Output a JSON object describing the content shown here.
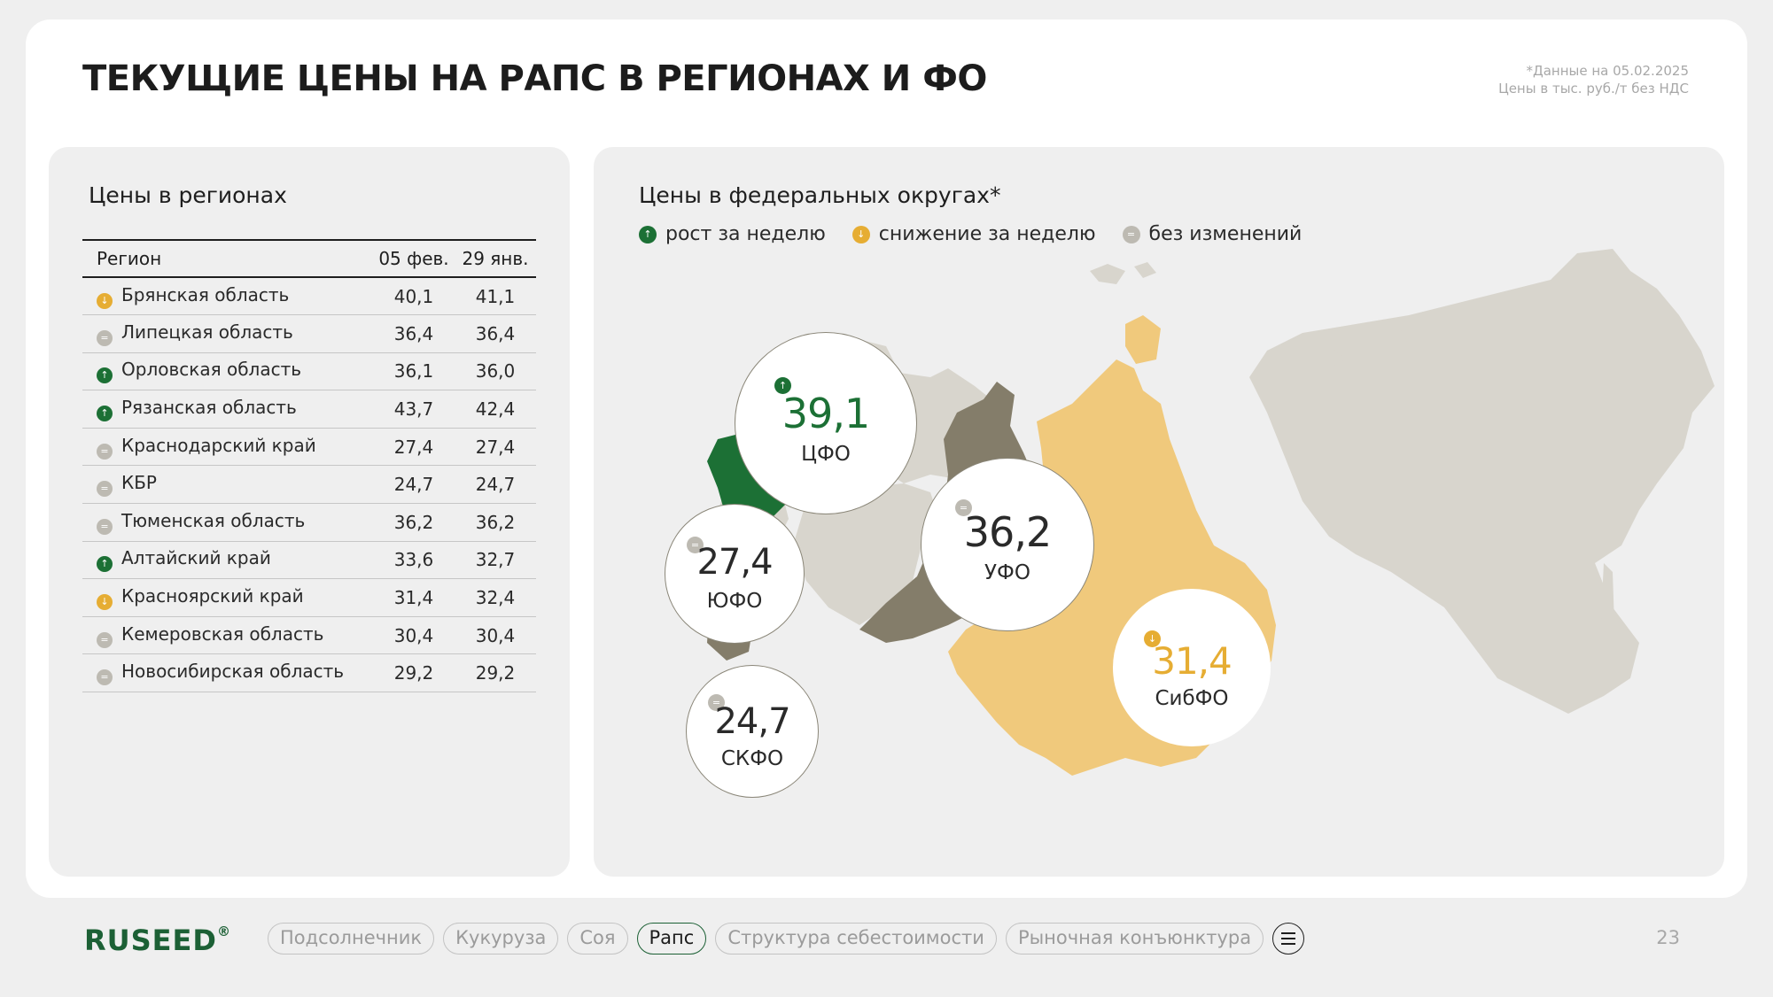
{
  "header": {
    "title": "ТЕКУЩИЕ ЦЕНЫ НА РАПС В РЕГИОНАХ И ФО",
    "note_date": "*Данные на 05.02.2025",
    "note_units": "Цены в тыс. руб./т без НДС"
  },
  "regions": {
    "title": "Цены в регионах",
    "columns": [
      "Регион",
      "05 фев.",
      "29 янв."
    ],
    "rows": [
      {
        "trend": "down",
        "name": "Брянская область",
        "cur": "40,1",
        "prev": "41,1"
      },
      {
        "trend": "flat",
        "name": "Липецкая область",
        "cur": "36,4",
        "prev": "36,4"
      },
      {
        "trend": "up",
        "name": "Орловская область",
        "cur": "36,1",
        "prev": "36,0"
      },
      {
        "trend": "up",
        "name": "Рязанская область",
        "cur": "43,7",
        "prev": "42,4"
      },
      {
        "trend": "flat",
        "name": "Краснодарский край",
        "cur": "27,4",
        "prev": "27,4"
      },
      {
        "trend": "flat",
        "name": "КБР",
        "cur": "24,7",
        "prev": "24,7"
      },
      {
        "trend": "flat",
        "name": "Тюменская область",
        "cur": "36,2",
        "prev": "36,2"
      },
      {
        "trend": "up",
        "name": "Алтайский край",
        "cur": "33,6",
        "prev": "32,7"
      },
      {
        "trend": "down",
        "name": "Красноярский край",
        "cur": "31,4",
        "prev": "32,4"
      },
      {
        "trend": "flat",
        "name": "Кемеровская область",
        "cur": "30,4",
        "prev": "30,4"
      },
      {
        "trend": "flat",
        "name": "Новосибирская область",
        "cur": "29,2",
        "prev": "29,2"
      }
    ]
  },
  "districts": {
    "title": "Цены в федеральных округах*",
    "legend": {
      "up": "рост за неделю",
      "down": "снижение за неделю",
      "flat": "без изменений"
    },
    "items": [
      {
        "key": "cfo",
        "name": "ЦФО",
        "value": "39,1",
        "trend": "up"
      },
      {
        "key": "yufo",
        "name": "ЮФО",
        "value": "27,4",
        "trend": "flat"
      },
      {
        "key": "ufo",
        "name": "УФО",
        "value": "36,2",
        "trend": "flat"
      },
      {
        "key": "skfo",
        "name": "СКФО",
        "value": "24,7",
        "trend": "flat"
      },
      {
        "key": "sibfo",
        "name": "СибФО",
        "value": "31,4",
        "trend": "down"
      }
    ]
  },
  "colors": {
    "up": "#1c7035",
    "down": "#e6ad33",
    "flat": "#bdbab2",
    "ufo_region": "#847d6a",
    "sibfo_region": "#f0c97c",
    "map_base": "#d8d5cd"
  },
  "icons": {
    "up": "arrow-up-icon",
    "down": "arrow-down-icon",
    "flat": "equals-icon"
  },
  "footer": {
    "logo": "RUSEED",
    "logo_mark": "®",
    "nav": [
      "Подсолнечник",
      "Кукуруза",
      "Соя",
      "Рапс",
      "Структура себестоимости",
      "Рыночная конъюнктура"
    ],
    "active_nav": "Рапс",
    "page": "23"
  }
}
